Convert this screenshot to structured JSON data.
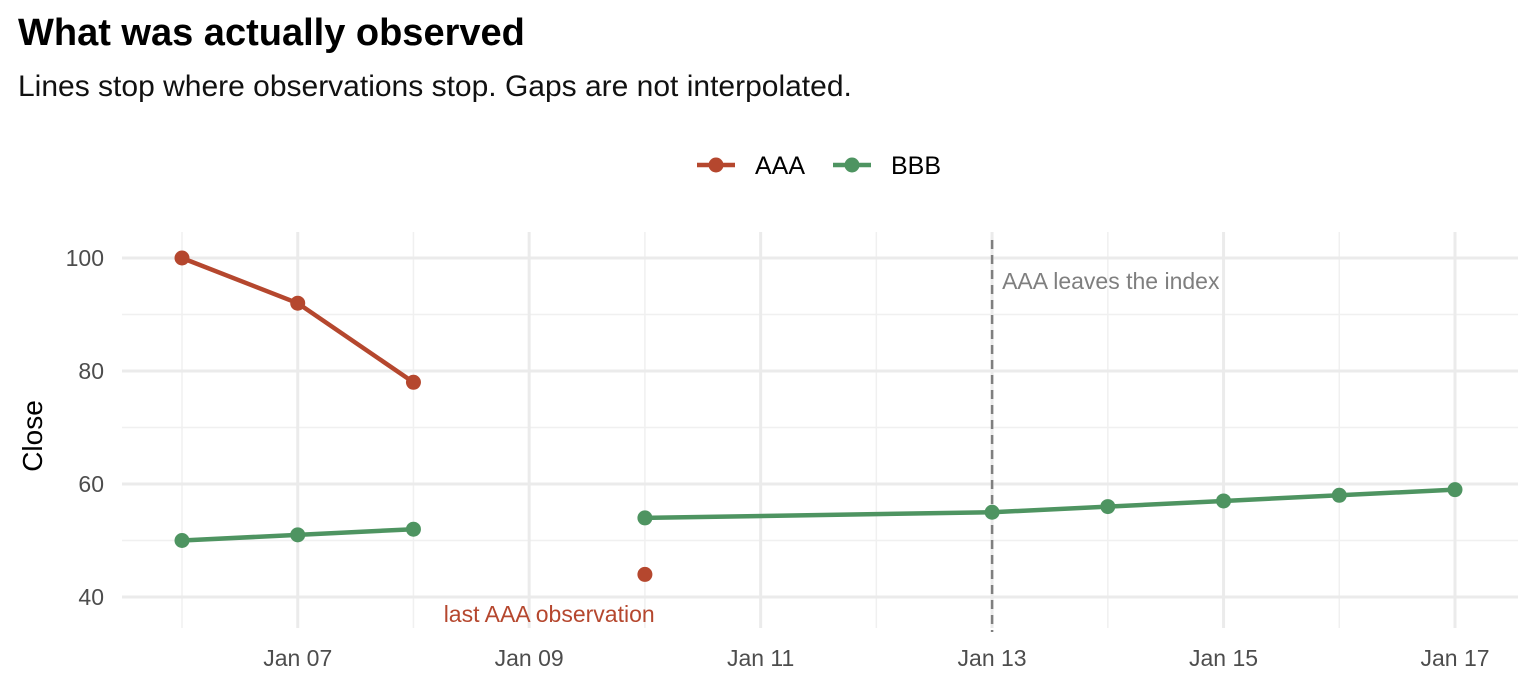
{
  "title": "What was actually observed",
  "subtitle": "Lines stop where observations stop. Gaps are not interpolated.",
  "chart_data": {
    "type": "line",
    "xlabel": "",
    "ylabel": "Close",
    "xlim": [
      "2024-01-05",
      "2024-01-17"
    ],
    "ylim": [
      37,
      104
    ],
    "x_ticks": [
      "2024-01-07",
      "2024-01-09",
      "2024-01-11",
      "2024-01-13",
      "2024-01-15",
      "2024-01-17"
    ],
    "x_tick_labels": [
      "Jan 07",
      "Jan 09",
      "Jan 11",
      "Jan 13",
      "Jan 15",
      "Jan 17"
    ],
    "y_ticks": [
      40,
      60,
      80,
      100
    ],
    "y_tick_labels": [
      "40",
      "60",
      "80",
      "100"
    ],
    "grid": true,
    "legend_position": "top",
    "series": [
      {
        "name": "AAA",
        "color": "#b5472e",
        "segments": [
          [
            [
              "2024-01-06",
              100
            ],
            [
              "2024-01-07",
              92
            ],
            [
              "2024-01-08",
              78
            ]
          ],
          [
            [
              "2024-01-10",
              44
            ]
          ]
        ]
      },
      {
        "name": "BBB",
        "color": "#4e9461",
        "segments": [
          [
            [
              "2024-01-06",
              50
            ],
            [
              "2024-01-07",
              51
            ],
            [
              "2024-01-08",
              52
            ]
          ],
          [
            [
              "2024-01-10",
              54
            ],
            [
              "2024-01-13",
              55
            ],
            [
              "2024-01-14",
              56
            ],
            [
              "2024-01-15",
              57
            ],
            [
              "2024-01-16",
              58
            ],
            [
              "2024-01-17",
              59
            ]
          ]
        ]
      }
    ],
    "annotations": [
      {
        "type": "vline",
        "x": "2024-01-13",
        "color": "#7f7f7f",
        "text": "AAA leaves the index"
      },
      {
        "type": "text",
        "x": "2024-01-09",
        "y": 36,
        "color": "#b5472e",
        "text": "last AAA observation"
      }
    ]
  }
}
